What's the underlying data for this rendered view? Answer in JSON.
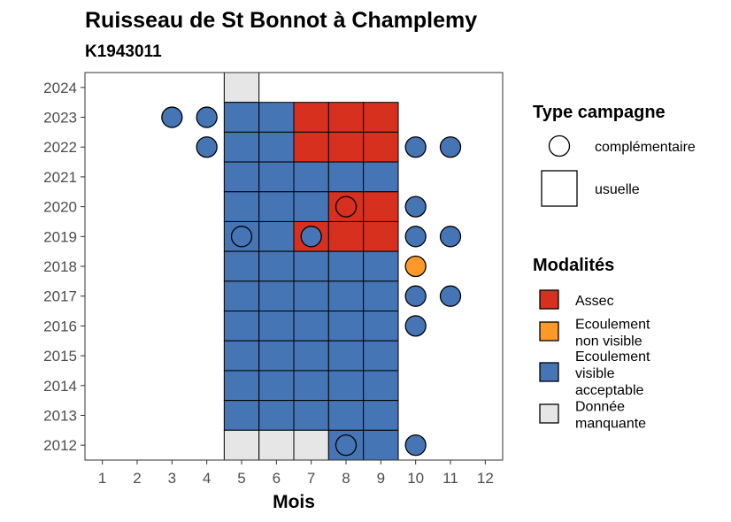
{
  "chart_data": {
    "type": "heatmap",
    "title": "Ruisseau de St Bonnot à Champlemy",
    "subtitle": "K1943011",
    "xlabel": "Mois",
    "ylabel": "",
    "x_ticks": [
      1,
      2,
      3,
      4,
      5,
      6,
      7,
      8,
      9,
      10,
      11,
      12
    ],
    "y_ticks": [
      2012,
      2013,
      2014,
      2015,
      2016,
      2017,
      2018,
      2019,
      2020,
      2021,
      2022,
      2023,
      2024
    ],
    "xlim": [
      0.5,
      12.5
    ],
    "ylim": [
      2011.5,
      2024.5
    ],
    "legend_type": {
      "title": "Type campagne",
      "entries": [
        {
          "key": "complementaire",
          "label": "complémentaire",
          "shape": "circle"
        },
        {
          "key": "usuelle",
          "label": "usuelle",
          "shape": "square"
        }
      ]
    },
    "legend_modalites": {
      "title": "Modalités",
      "entries": [
        {
          "key": "A",
          "lines": [
            "Assec"
          ],
          "color": "#d7301f"
        },
        {
          "key": "N",
          "lines": [
            "Ecoulement",
            "non visible"
          ],
          "color": "#fe9929"
        },
        {
          "key": "V",
          "lines": [
            "Ecoulement",
            "visible",
            "acceptable"
          ],
          "color": "#4575b4"
        },
        {
          "key": "M",
          "lines": [
            "Donnée",
            "manquante"
          ],
          "color": "#e6e6e6"
        }
      ]
    },
    "usuelle": [
      {
        "year": 2024,
        "month": 5,
        "mod": "M"
      },
      {
        "year": 2023,
        "month": 5,
        "mod": "V"
      },
      {
        "year": 2023,
        "month": 6,
        "mod": "V"
      },
      {
        "year": 2023,
        "month": 7,
        "mod": "A"
      },
      {
        "year": 2023,
        "month": 8,
        "mod": "A"
      },
      {
        "year": 2023,
        "month": 9,
        "mod": "A"
      },
      {
        "year": 2022,
        "month": 5,
        "mod": "V"
      },
      {
        "year": 2022,
        "month": 6,
        "mod": "V"
      },
      {
        "year": 2022,
        "month": 7,
        "mod": "A"
      },
      {
        "year": 2022,
        "month": 8,
        "mod": "A"
      },
      {
        "year": 2022,
        "month": 9,
        "mod": "A"
      },
      {
        "year": 2021,
        "month": 5,
        "mod": "V"
      },
      {
        "year": 2021,
        "month": 6,
        "mod": "V"
      },
      {
        "year": 2021,
        "month": 7,
        "mod": "V"
      },
      {
        "year": 2021,
        "month": 8,
        "mod": "V"
      },
      {
        "year": 2021,
        "month": 9,
        "mod": "V"
      },
      {
        "year": 2020,
        "month": 5,
        "mod": "V"
      },
      {
        "year": 2020,
        "month": 6,
        "mod": "V"
      },
      {
        "year": 2020,
        "month": 7,
        "mod": "V"
      },
      {
        "year": 2020,
        "month": 8,
        "mod": "A"
      },
      {
        "year": 2020,
        "month": 9,
        "mod": "A"
      },
      {
        "year": 2019,
        "month": 5,
        "mod": "V"
      },
      {
        "year": 2019,
        "month": 6,
        "mod": "V"
      },
      {
        "year": 2019,
        "month": 7,
        "mod": "A"
      },
      {
        "year": 2019,
        "month": 8,
        "mod": "A"
      },
      {
        "year": 2019,
        "month": 9,
        "mod": "A"
      },
      {
        "year": 2018,
        "month": 5,
        "mod": "V"
      },
      {
        "year": 2018,
        "month": 6,
        "mod": "V"
      },
      {
        "year": 2018,
        "month": 7,
        "mod": "V"
      },
      {
        "year": 2018,
        "month": 8,
        "mod": "V"
      },
      {
        "year": 2018,
        "month": 9,
        "mod": "V"
      },
      {
        "year": 2017,
        "month": 5,
        "mod": "V"
      },
      {
        "year": 2017,
        "month": 6,
        "mod": "V"
      },
      {
        "year": 2017,
        "month": 7,
        "mod": "V"
      },
      {
        "year": 2017,
        "month": 8,
        "mod": "V"
      },
      {
        "year": 2017,
        "month": 9,
        "mod": "V"
      },
      {
        "year": 2016,
        "month": 5,
        "mod": "V"
      },
      {
        "year": 2016,
        "month": 6,
        "mod": "V"
      },
      {
        "year": 2016,
        "month": 7,
        "mod": "V"
      },
      {
        "year": 2016,
        "month": 8,
        "mod": "V"
      },
      {
        "year": 2016,
        "month": 9,
        "mod": "V"
      },
      {
        "year": 2015,
        "month": 5,
        "mod": "V"
      },
      {
        "year": 2015,
        "month": 6,
        "mod": "V"
      },
      {
        "year": 2015,
        "month": 7,
        "mod": "V"
      },
      {
        "year": 2015,
        "month": 8,
        "mod": "V"
      },
      {
        "year": 2015,
        "month": 9,
        "mod": "V"
      },
      {
        "year": 2014,
        "month": 5,
        "mod": "V"
      },
      {
        "year": 2014,
        "month": 6,
        "mod": "V"
      },
      {
        "year": 2014,
        "month": 7,
        "mod": "V"
      },
      {
        "year": 2014,
        "month": 8,
        "mod": "V"
      },
      {
        "year": 2014,
        "month": 9,
        "mod": "V"
      },
      {
        "year": 2013,
        "month": 5,
        "mod": "V"
      },
      {
        "year": 2013,
        "month": 6,
        "mod": "V"
      },
      {
        "year": 2013,
        "month": 7,
        "mod": "V"
      },
      {
        "year": 2013,
        "month": 8,
        "mod": "V"
      },
      {
        "year": 2013,
        "month": 9,
        "mod": "V"
      },
      {
        "year": 2012,
        "month": 5,
        "mod": "M"
      },
      {
        "year": 2012,
        "month": 6,
        "mod": "M"
      },
      {
        "year": 2012,
        "month": 7,
        "mod": "M"
      },
      {
        "year": 2012,
        "month": 8,
        "mod": "V"
      },
      {
        "year": 2012,
        "month": 9,
        "mod": "V"
      }
    ],
    "complementaire": [
      {
        "year": 2023,
        "month": 3,
        "mod": "V"
      },
      {
        "year": 2023,
        "month": 4,
        "mod": "V"
      },
      {
        "year": 2022,
        "month": 4,
        "mod": "V"
      },
      {
        "year": 2022,
        "month": 10,
        "mod": "V"
      },
      {
        "year": 2022,
        "month": 11,
        "mod": "V"
      },
      {
        "year": 2020,
        "month": 8,
        "mod": "A"
      },
      {
        "year": 2020,
        "month": 10,
        "mod": "V"
      },
      {
        "year": 2019,
        "month": 5,
        "mod": "V"
      },
      {
        "year": 2019,
        "month": 7,
        "mod": "V"
      },
      {
        "year": 2019,
        "month": 10,
        "mod": "V"
      },
      {
        "year": 2019,
        "month": 11,
        "mod": "V"
      },
      {
        "year": 2018,
        "month": 10,
        "mod": "N"
      },
      {
        "year": 2017,
        "month": 10,
        "mod": "V"
      },
      {
        "year": 2017,
        "month": 11,
        "mod": "V"
      },
      {
        "year": 2016,
        "month": 10,
        "mod": "V"
      },
      {
        "year": 2012,
        "month": 8,
        "mod": "V"
      },
      {
        "year": 2012,
        "month": 10,
        "mod": "V"
      }
    ]
  }
}
